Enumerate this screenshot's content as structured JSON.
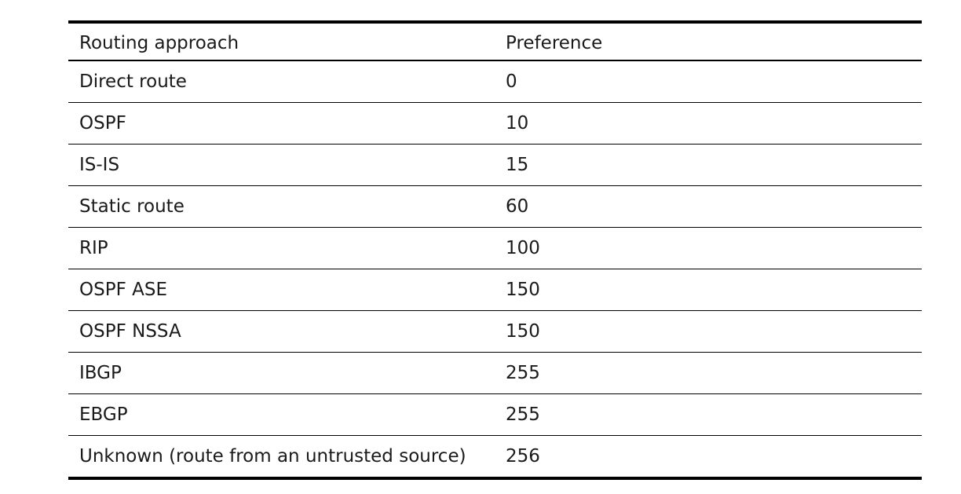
{
  "table": {
    "headers": [
      "Routing approach",
      "Preference"
    ],
    "rows": [
      [
        "Direct route",
        "0"
      ],
      [
        "OSPF",
        "10"
      ],
      [
        "IS-IS",
        "15"
      ],
      [
        "Static route",
        "60"
      ],
      [
        "RIP",
        "100"
      ],
      [
        "OSPF ASE",
        "150"
      ],
      [
        "OSPF NSSA",
        "150"
      ],
      [
        "IBGP",
        "255"
      ],
      [
        "EBGP",
        "255"
      ],
      [
        "Unknown (route from an untrusted source)",
        "256"
      ]
    ]
  }
}
